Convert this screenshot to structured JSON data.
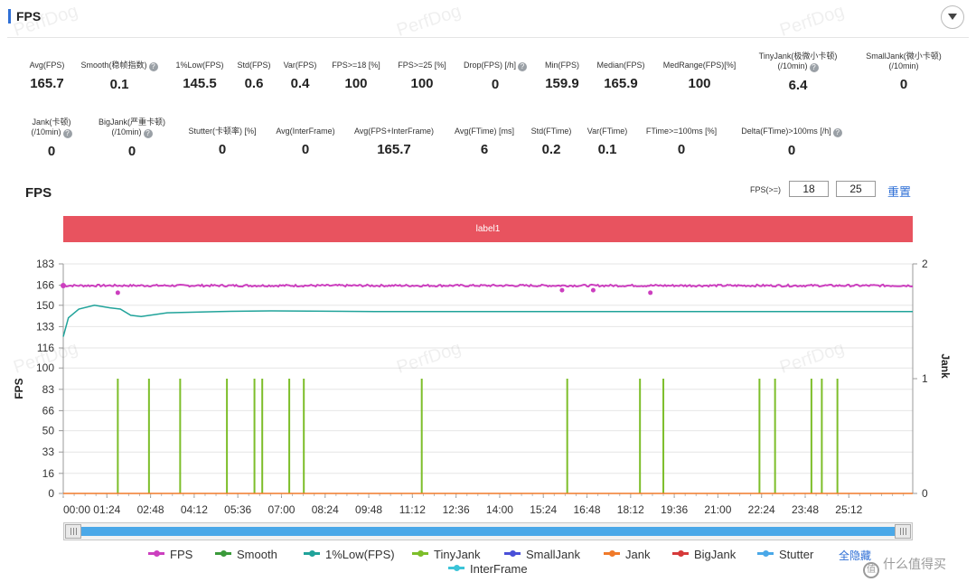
{
  "panel": {
    "title": "FPS"
  },
  "metrics_row1": [
    {
      "name": "metric-avg-fps",
      "label": "Avg(FPS)",
      "value": "165.7",
      "help": false
    },
    {
      "name": "metric-smooth",
      "label": "Smooth(稳帧指数)",
      "value": "0.1",
      "help": true
    },
    {
      "name": "metric-1pct-low",
      "label": "1%Low(FPS)",
      "value": "145.5",
      "help": false
    },
    {
      "name": "metric-std-fps",
      "label": "Std(FPS)",
      "value": "0.6",
      "help": false
    },
    {
      "name": "metric-var-fps",
      "label": "Var(FPS)",
      "value": "0.4",
      "help": false
    },
    {
      "name": "metric-fps-ge-18",
      "label": "FPS>=18 [%]",
      "value": "100",
      "help": false
    },
    {
      "name": "metric-fps-ge-25",
      "label": "FPS>=25 [%]",
      "value": "100",
      "help": false
    },
    {
      "name": "metric-drop-fps",
      "label": "Drop(FPS) [/h]",
      "value": "0",
      "help": true
    },
    {
      "name": "metric-min-fps",
      "label": "Min(FPS)",
      "value": "159.9",
      "help": false
    },
    {
      "name": "metric-median-fps",
      "label": "Median(FPS)",
      "value": "165.9",
      "help": false
    },
    {
      "name": "metric-medrange",
      "label": "MedRange(FPS)[%]",
      "value": "100",
      "help": false
    },
    {
      "name": "metric-tinyjank",
      "label": "TinyJank(极微小卡顿)",
      "label2": "(/10min)",
      "value": "6.4",
      "help": true
    },
    {
      "name": "metric-smalljank",
      "label": "SmallJank(微小卡顿)",
      "label2": "(/10min)",
      "value": "0",
      "help": false
    }
  ],
  "metrics_row2": [
    {
      "name": "metric-jank",
      "label": "Jank(卡顿)",
      "label2": "(/10min)",
      "value": "0",
      "help": true
    },
    {
      "name": "metric-bigjank",
      "label": "BigJank(严重卡顿)",
      "label2": "(/10min)",
      "value": "0",
      "help": true
    },
    {
      "name": "metric-stutter",
      "label": "Stutter(卡顿率) [%]",
      "value": "0",
      "help": false
    },
    {
      "name": "metric-avg-interframe",
      "label": "Avg(InterFrame)",
      "value": "0",
      "help": false
    },
    {
      "name": "metric-avg-fps-interframe",
      "label": "Avg(FPS+InterFrame)",
      "value": "165.7",
      "help": false
    },
    {
      "name": "metric-avg-ftime",
      "label": "Avg(FTime) [ms]",
      "value": "6",
      "help": false
    },
    {
      "name": "metric-std-ftime",
      "label": "Std(FTime)",
      "value": "0.2",
      "help": false
    },
    {
      "name": "metric-var-ftime",
      "label": "Var(FTime)",
      "value": "0.1",
      "help": false
    },
    {
      "name": "metric-ftime-ge-100",
      "label": "FTime>=100ms [%]",
      "value": "0",
      "help": false
    },
    {
      "name": "metric-delta-ftime",
      "label": "Delta(FTime)>100ms [/h]",
      "value": "0",
      "help": true
    }
  ],
  "chart_header": {
    "title": "FPS",
    "threshold_label": "FPS(>=)",
    "threshold_1": "18",
    "threshold_2": "25",
    "reset_label": "重置"
  },
  "label_band": "label1",
  "watermark": "PerfDog",
  "corner_brand": "什么值得买",
  "legend_all_label": "全隐藏",
  "chart_data": {
    "type": "line",
    "xlabel": "",
    "ylabel": "FPS",
    "y2label": "Jank",
    "ylim": [
      0,
      183
    ],
    "y_ticks": [
      0,
      16,
      33,
      50,
      66,
      83,
      100,
      116,
      133,
      150,
      166,
      183
    ],
    "y2lim": [
      0,
      2
    ],
    "y2_ticks": [
      0,
      1,
      2
    ],
    "x_ticks": [
      "00:00",
      "01:24",
      "02:48",
      "04:12",
      "05:36",
      "07:00",
      "08:24",
      "09:48",
      "11:12",
      "12:36",
      "14:00",
      "15:24",
      "16:48",
      "18:12",
      "19:36",
      "21:00",
      "22:24",
      "23:48",
      "25:12"
    ],
    "x_range_seconds": [
      0,
      1635
    ],
    "series": [
      {
        "name": "FPS",
        "color": "#cc3fbf",
        "approx_value": 165.7,
        "dips": [
          {
            "t": 105,
            "v": 160
          },
          {
            "t": 1130,
            "v": 160
          },
          {
            "t": 1020,
            "v": 162
          },
          {
            "t": 960,
            "v": 162
          }
        ]
      },
      {
        "name": "Smooth",
        "color": "#3a9a3a",
        "points": []
      },
      {
        "name": "1%Low(FPS)",
        "color": "#20a39a",
        "points": [
          [
            0,
            125
          ],
          [
            10,
            140
          ],
          [
            30,
            147
          ],
          [
            60,
            150
          ],
          [
            90,
            148
          ],
          [
            110,
            147
          ],
          [
            130,
            142
          ],
          [
            150,
            141
          ],
          [
            200,
            144
          ],
          [
            300,
            145
          ],
          [
            400,
            145.5
          ],
          [
            600,
            145
          ],
          [
            1000,
            145
          ],
          [
            1635,
            145
          ]
        ]
      },
      {
        "name": "TinyJank",
        "color": "#7dbe2a",
        "events_seconds": [
          105,
          165,
          225,
          315,
          368,
          383,
          435,
          463,
          690,
          970,
          1110,
          1155,
          1340,
          1370,
          1440,
          1460,
          1490
        ]
      },
      {
        "name": "SmallJank",
        "color": "#4a50d8",
        "points": []
      },
      {
        "name": "Jank",
        "color": "#f07a2a",
        "points": []
      },
      {
        "name": "BigJank",
        "color": "#d63a3a",
        "points": []
      },
      {
        "name": "Stutter",
        "color": "#4aa8e8",
        "points": []
      },
      {
        "name": "InterFrame",
        "color": "#3cc4d8",
        "points": []
      }
    ],
    "grid": true,
    "legend_position": "bottom"
  }
}
